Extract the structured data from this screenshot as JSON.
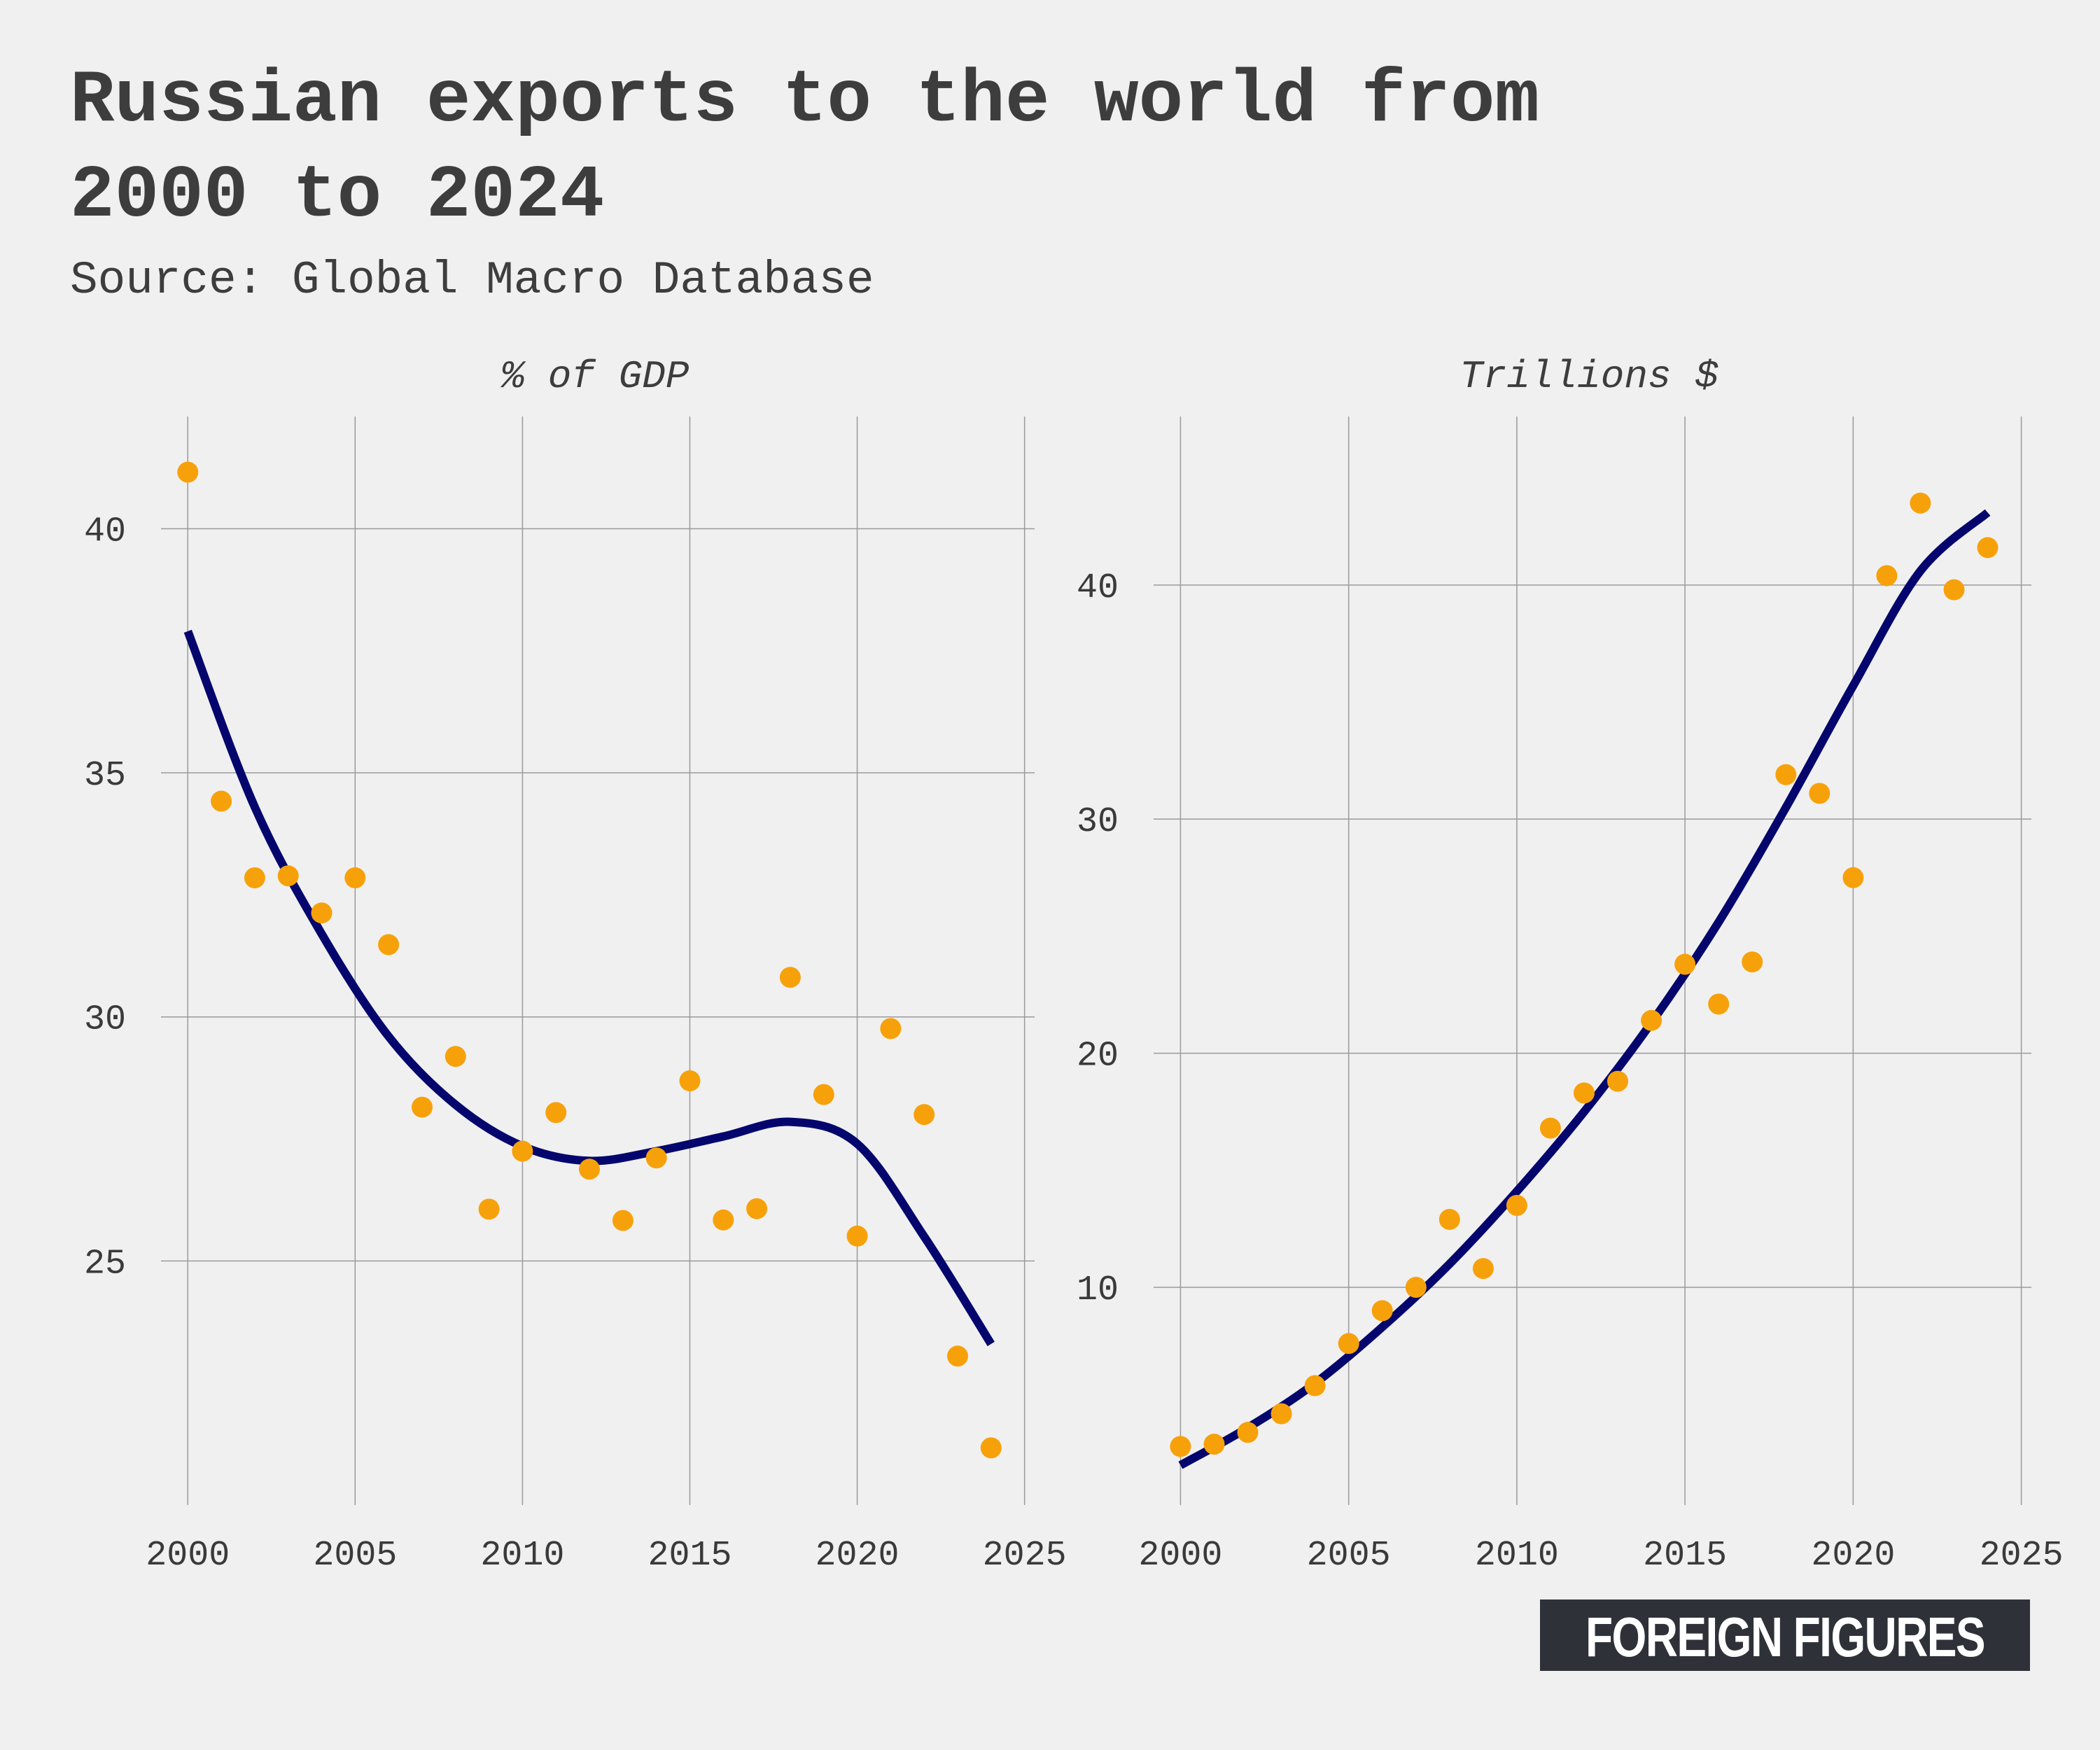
{
  "title_line1": "Russian exports to the world from",
  "title_line2": "2000 to 2024",
  "subtitle": "Source: Global Macro Database",
  "brand": "FOREIGN FIGURES",
  "colors": {
    "background": "#f0f0f0",
    "points": "#f7a10a",
    "fit_curve": "#05066d",
    "grid": "#9a9a9a",
    "brand_bg": "#2e3238",
    "brand_text": "#ffffff"
  },
  "chart_data": [
    {
      "type": "scatter",
      "title": "% of GDP",
      "xlabel": "",
      "ylabel": "",
      "xlim": [
        1999.2,
        2025.3
      ],
      "ylim": [
        20.0,
        42.3
      ],
      "xticks": [
        2000,
        2005,
        2010,
        2015,
        2020,
        2025
      ],
      "yticks": [
        25,
        30,
        35,
        40
      ],
      "grid": true,
      "x": [
        2000,
        2001,
        2002,
        2003,
        2004,
        2005,
        2006,
        2007,
        2008,
        2009,
        2010,
        2011,
        2012,
        2013,
        2014,
        2015,
        2016,
        2017,
        2018,
        2019,
        2020,
        2021,
        2022,
        2023,
        2024
      ],
      "y": [
        41.16,
        34.42,
        32.85,
        32.89,
        32.13,
        32.85,
        31.48,
        28.15,
        29.19,
        26.06,
        27.25,
        28.04,
        26.88,
        25.83,
        27.11,
        28.69,
        25.84,
        26.07,
        30.81,
        28.41,
        25.51,
        29.76,
        28.0,
        23.05,
        21.17
      ],
      "fit_curve": {
        "x": [
          2000,
          2002,
          2004,
          2006,
          2008,
          2010,
          2012,
          2014,
          2016,
          2018,
          2020,
          2022,
          2024
        ],
        "y": [
          37.9,
          34.3,
          31.7,
          29.6,
          28.2,
          27.35,
          27.05,
          27.25,
          27.55,
          27.85,
          27.4,
          25.5,
          23.3
        ]
      }
    },
    {
      "type": "scatter",
      "title": "Trillions $",
      "xlabel": "",
      "ylabel": "",
      "xlim": [
        1999.2,
        2025.3
      ],
      "ylim": [
        0.7,
        47.2
      ],
      "xticks": [
        2000,
        2005,
        2010,
        2015,
        2020,
        2025
      ],
      "yticks": [
        10,
        20,
        30,
        40
      ],
      "grid": true,
      "x": [
        2000,
        2001,
        2002,
        2003,
        2004,
        2005,
        2006,
        2007,
        2008,
        2009,
        2010,
        2011,
        2012,
        2013,
        2014,
        2015,
        2016,
        2017,
        2018,
        2019,
        2020,
        2021,
        2022,
        2023,
        2024
      ],
      "y": [
        3.2,
        3.3,
        3.8,
        4.6,
        5.8,
        7.6,
        9.0,
        10.0,
        12.9,
        10.8,
        13.5,
        16.8,
        18.3,
        18.8,
        21.4,
        23.8,
        22.1,
        23.9,
        31.9,
        31.1,
        27.5,
        40.4,
        43.5,
        39.8,
        41.6
      ],
      "fit_curve": {
        "x": [
          2000,
          2002,
          2004,
          2006,
          2008,
          2010,
          2012,
          2014,
          2016,
          2018,
          2020,
          2022,
          2024
        ],
        "y": [
          2.4,
          4.0,
          5.9,
          8.3,
          11.0,
          14.1,
          17.5,
          21.3,
          25.6,
          30.5,
          35.7,
          40.6,
          43.1
        ]
      }
    }
  ]
}
